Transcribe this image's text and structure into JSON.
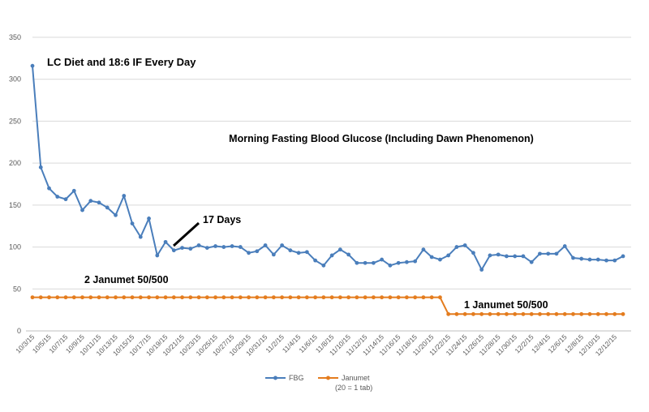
{
  "chart_data": {
    "type": "line",
    "title": "Morning Fasting Blood Glucose (Including Dawn Phenomenon)",
    "xlabel": "",
    "ylabel": "",
    "ylim": [
      0,
      350
    ],
    "y_ticks": [
      "0",
      "50",
      "100",
      "150",
      "200",
      "250",
      "300",
      "350"
    ],
    "x_tick_labels": [
      "10/3/15",
      "10/5/15",
      "10/7/15",
      "10/9/15",
      "10/11/15",
      "10/13/15",
      "10/15/15",
      "10/17/15",
      "10/19/15",
      "10/21/15",
      "10/23/15",
      "10/25/15",
      "10/27/15",
      "10/29/15",
      "10/31/15",
      "11/2/15",
      "11/4/15",
      "11/6/15",
      "11/8/15",
      "11/10/15",
      "11/12/15",
      "11/14/15",
      "11/16/15",
      "11/18/15",
      "11/20/15",
      "11/22/15",
      "11/24/15",
      "11/26/15",
      "11/28/15",
      "11/30/15",
      "12/2/15",
      "12/4/15",
      "12/6/15",
      "12/8/15",
      "12/10/15",
      "12/12/15"
    ],
    "grid": true,
    "legend_position": "bottom",
    "series": [
      {
        "name": "FBG",
        "color": "#4a7ebb",
        "values": [
          316,
          195,
          170,
          160,
          157,
          167,
          144,
          155,
          153,
          147,
          138,
          161,
          128,
          112,
          134,
          90,
          106,
          96,
          99,
          98,
          102,
          99,
          101,
          100,
          101,
          100,
          93,
          95,
          102,
          91,
          102,
          96,
          93,
          94,
          84,
          78,
          90,
          97,
          91,
          81,
          81,
          81,
          85,
          78,
          81,
          82,
          83,
          97,
          88,
          85,
          90,
          100,
          102,
          93,
          73,
          90,
          91,
          89,
          89,
          89,
          82,
          92,
          92,
          92,
          101,
          87,
          86,
          85,
          85,
          84,
          84,
          89
        ]
      },
      {
        "name": "Janumet",
        "sublabel": "(20 = 1 tab)",
        "color": "#e47c1e",
        "values": [
          40,
          40,
          40,
          40,
          40,
          40,
          40,
          40,
          40,
          40,
          40,
          40,
          40,
          40,
          40,
          40,
          40,
          40,
          40,
          40,
          40,
          40,
          40,
          40,
          40,
          40,
          40,
          40,
          40,
          40,
          40,
          40,
          40,
          40,
          40,
          40,
          40,
          40,
          40,
          40,
          40,
          40,
          40,
          40,
          40,
          40,
          40,
          40,
          40,
          40,
          20,
          20,
          20,
          20,
          20,
          20,
          20,
          20,
          20,
          20,
          20,
          20,
          20,
          20,
          20,
          20,
          20,
          20,
          20,
          20,
          20,
          20
        ]
      }
    ],
    "annotations": [
      {
        "id": "ann1",
        "text": "LC Diet and 18:6 IF Every Day"
      },
      {
        "id": "ann2",
        "text": "17 Days"
      },
      {
        "id": "ann3",
        "text": "2 Janumet 50/500"
      },
      {
        "id": "ann4",
        "text": "1 Janumet 50/500"
      }
    ]
  }
}
